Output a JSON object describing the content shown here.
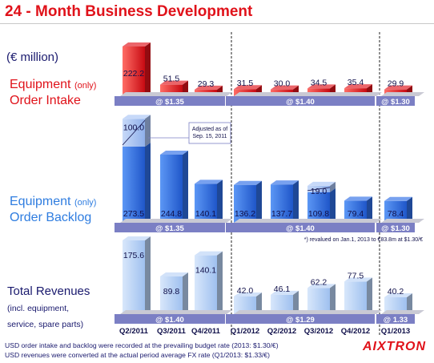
{
  "title": "24 - Month Business Development",
  "unit_label": "(€ million)",
  "sections": {
    "intake": {
      "line1": "Equipment",
      "paren": "(only)",
      "line2": "Order Intake"
    },
    "backlog": {
      "line1": "Equipment",
      "paren": "(only)",
      "line2": "Order Backlog"
    },
    "revenues": {
      "line1": "Total Revenues",
      "sub1": "(incl. equipment,",
      "sub2": "service, spare parts)"
    }
  },
  "categories": [
    "Q2/2011",
    "Q3/2011",
    "Q4/2011",
    "Q1/2012",
    "Q2/2012",
    "Q3/2012",
    "Q4/2012",
    "Q1/2013"
  ],
  "rates": {
    "intake": [
      {
        "label": "@ $1.35",
        "from": 0,
        "to": 2
      },
      {
        "label": "@ $1.40",
        "from": 3,
        "to": 6
      },
      {
        "label": "@ $1.30",
        "from": 7,
        "to": 7
      }
    ],
    "backlog": [
      {
        "label": "@ $1.35",
        "from": 0,
        "to": 2
      },
      {
        "label": "@ $1.40",
        "from": 3,
        "to": 6
      },
      {
        "label": "@ $1.30",
        "from": 7,
        "to": 7
      }
    ],
    "revenues": [
      {
        "label": "@ $1.40",
        "from": 0,
        "to": 2
      },
      {
        "label": "@ $1.29",
        "from": 3,
        "to": 6
      },
      {
        "label": "@ 1.33",
        "from": 7,
        "to": 7
      }
    ]
  },
  "annotations": {
    "adjusted": "Adjusted as of\nSep. 15, 2011",
    "revalued": "*) revalued on Jan.1, 2013 to €83.8m at $1.30/€"
  },
  "footnotes": [
    "USD order intake and backlog were recorded at the prevailing budget rate (2013: $1.30/€)",
    "USD revenues were converted at the actual period average FX rate (Q1/2013: $1.33/€)"
  ],
  "logo": "AIXTRON",
  "chart_data": [
    {
      "type": "bar",
      "title": "Equipment (only) Order Intake",
      "categories": [
        "Q2/2011",
        "Q3/2011",
        "Q4/2011",
        "Q1/2012",
        "Q2/2012",
        "Q3/2012",
        "Q4/2012",
        "Q1/2013"
      ],
      "values": [
        222.2,
        51.5,
        29.3,
        31.5,
        30.0,
        34.5,
        35.4,
        29.9
      ],
      "labels": [
        "222.2",
        "51.5",
        "29.3",
        "31.5",
        "30.0",
        "34.5",
        "35.4",
        "29.9"
      ],
      "colors": {
        "main": "#e0121a"
      }
    },
    {
      "type": "bar",
      "title": "Equipment (only) Order Backlog",
      "categories": [
        "Q2/2011",
        "Q3/2011",
        "Q4/2011",
        "Q1/2012",
        "Q2/2012",
        "Q3/2012",
        "Q4/2012",
        "Q1/2013"
      ],
      "values": [
        273.5,
        244.8,
        140.1,
        136.2,
        137.7,
        109.8,
        79.4,
        78.4
      ],
      "labels": [
        "273.5",
        "244.8",
        "140.1",
        "136.2",
        "137.7",
        "109.8",
        "79.4",
        "78.4"
      ],
      "adjustment": {
        "index": 0,
        "value": 100.0,
        "label": "100.0"
      },
      "adjustment2": {
        "index": 5,
        "value": 19.0,
        "label": "19.0"
      },
      "colors": {
        "main": "#2f6fe6",
        "adjust": "#a9c4f5"
      }
    },
    {
      "type": "bar",
      "title": "Total Revenues",
      "categories": [
        "Q2/2011",
        "Q3/2011",
        "Q4/2011",
        "Q1/2012",
        "Q2/2012",
        "Q3/2012",
        "Q4/2012",
        "Q1/2013"
      ],
      "values": [
        175.6,
        89.8,
        140.1,
        42.0,
        46.1,
        62.2,
        77.5,
        40.2
      ],
      "labels": [
        "175.6",
        "89.8",
        "140.1",
        "42.0",
        "46.1",
        "62.2",
        "77.5",
        "40.2"
      ],
      "colors": {
        "main": "#b9d3f6"
      }
    }
  ]
}
